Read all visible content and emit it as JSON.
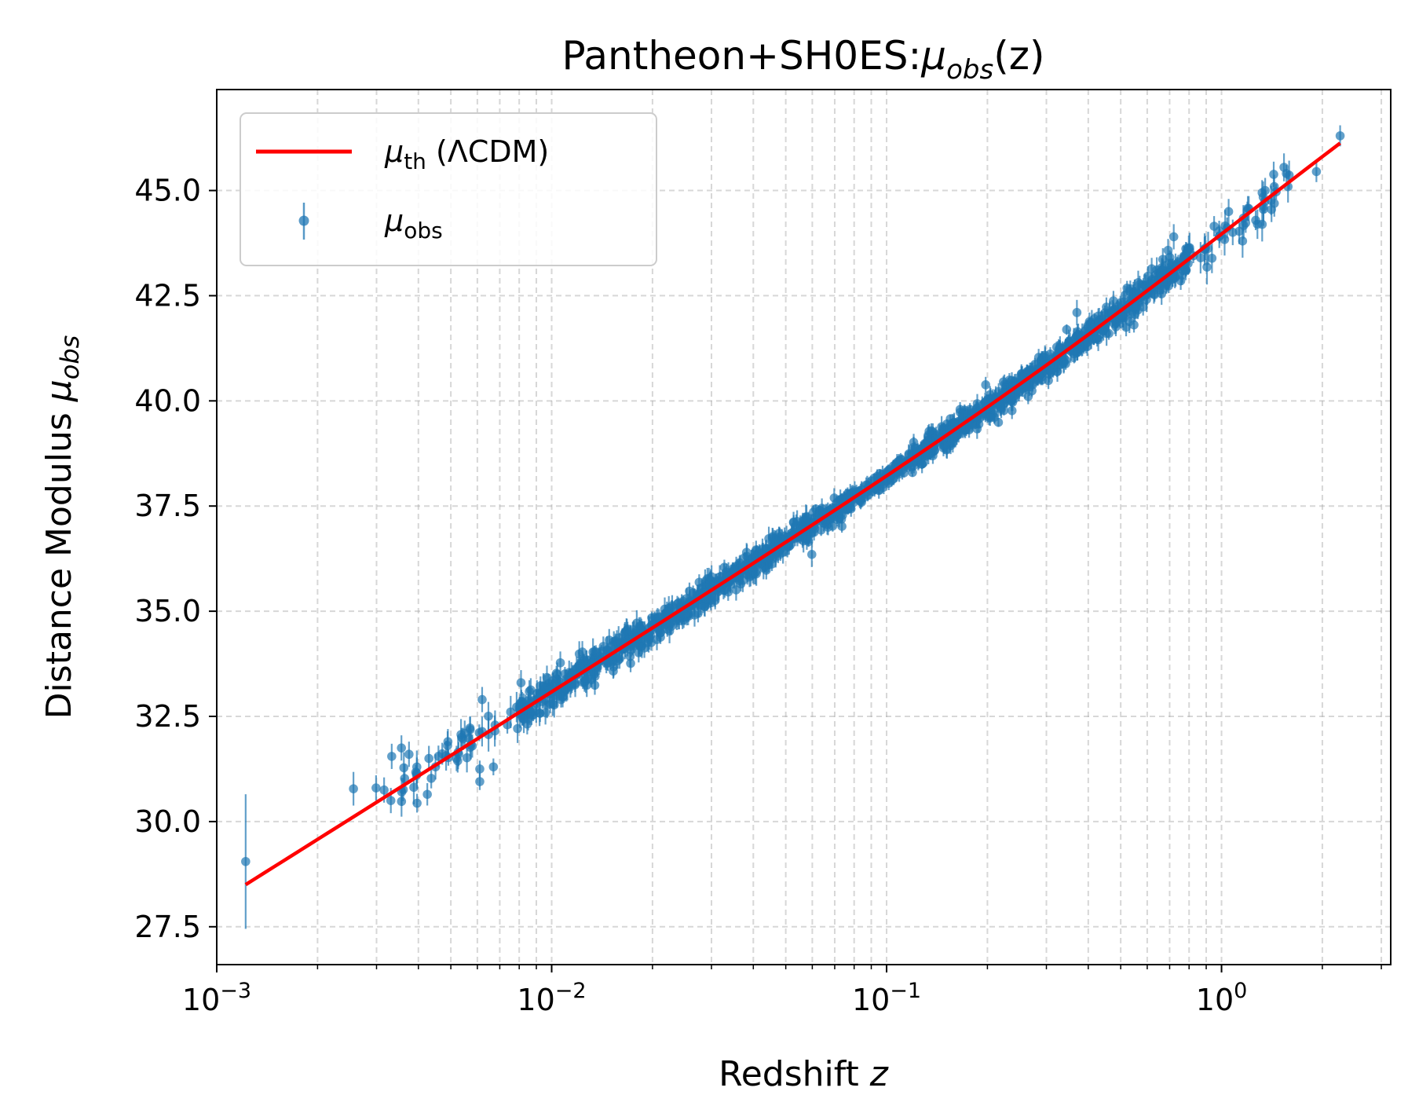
{
  "chart_data": {
    "type": "scatter",
    "title_main": "Pantheon+SH0ES:",
    "title_math": "μ",
    "title_sub": "obs",
    "title_tail": "(z)",
    "xlabel_text": "Redshift ",
    "xlabel_var": "z",
    "ylabel_text": "Distance Modulus ",
    "ylabel_math": "μ",
    "ylabel_sub": "obs",
    "xscale": "log",
    "xlim": [
      0.001,
      3.2
    ],
    "ylim": [
      26.6,
      47.4
    ],
    "xticks": [
      {
        "value": 0.001,
        "base": "10",
        "exp": "−3"
      },
      {
        "value": 0.01,
        "base": "10",
        "exp": "−2"
      },
      {
        "value": 0.1,
        "base": "10",
        "exp": "−1"
      },
      {
        "value": 1,
        "base": "10",
        "exp": "0"
      }
    ],
    "yticks": [
      "27.5",
      "30.0",
      "32.5",
      "35.0",
      "37.5",
      "40.0",
      "42.5",
      "45.0"
    ],
    "ytick_values": [
      27.5,
      30.0,
      32.5,
      35.0,
      37.5,
      40.0,
      42.5,
      45.0
    ],
    "grid": true,
    "legend_position": "upper-left",
    "legend": {
      "theory_math": "μ",
      "theory_sub": "th",
      "theory_tail": " (ΛCDM)",
      "obs_math": "μ",
      "obs_sub": "obs"
    },
    "series": [
      {
        "name": "μ_th (ΛCDM)",
        "kind": "line",
        "color": "#ff0000",
        "model": {
          "H0": 73.0,
          "Om": 0.334,
          "z_min": 0.00122,
          "z_max": 2.26
        }
      },
      {
        "name": "μ_obs",
        "kind": "errorbar",
        "color": "#1f77b4",
        "approx_count": 1700,
        "points": [
          {
            "z": 0.00122,
            "mu": 29.05,
            "err": 1.6
          },
          {
            "z": 0.00256,
            "mu": 30.78,
            "err": 0.4
          },
          {
            "z": 0.00299,
            "mu": 30.8,
            "err": 0.3
          },
          {
            "z": 0.00316,
            "mu": 30.75,
            "err": 0.3
          },
          {
            "z": 0.00331,
            "mu": 30.5,
            "err": 0.3
          },
          {
            "z": 0.00333,
            "mu": 31.55,
            "err": 0.3
          },
          {
            "z": 0.00356,
            "mu": 31.75,
            "err": 0.3
          },
          {
            "z": 0.00375,
            "mu": 31.6,
            "err": 0.3
          },
          {
            "z": 0.00395,
            "mu": 31.1,
            "err": 0.2
          },
          {
            "z": 0.0043,
            "mu": 31.5,
            "err": 0.3
          },
          {
            "z": 0.0045,
            "mu": 31.3,
            "err": 0.3
          },
          {
            "z": 0.0049,
            "mu": 31.9,
            "err": 0.3
          },
          {
            "z": 0.0052,
            "mu": 31.5,
            "err": 0.3
          },
          {
            "z": 0.0055,
            "mu": 32.1,
            "err": 0.3
          },
          {
            "z": 0.0061,
            "mu": 30.95,
            "err": 0.2
          },
          {
            "z": 0.0061,
            "mu": 31.25,
            "err": 0.2
          },
          {
            "z": 0.0062,
            "mu": 32.9,
            "err": 0.3
          },
          {
            "z": 0.0067,
            "mu": 31.3,
            "err": 0.2
          },
          {
            "z": 0.0081,
            "mu": 33.3,
            "err": 0.3
          },
          {
            "z": 0.0598,
            "mu": 36.35,
            "err": 0.3
          },
          {
            "z": 0.37,
            "mu": 42.1,
            "err": 0.3
          },
          {
            "z": 0.72,
            "mu": 43.9,
            "err": 0.3
          },
          {
            "z": 0.89,
            "mu": 43.6,
            "err": 0.3
          },
          {
            "z": 1.05,
            "mu": 44.5,
            "err": 0.3
          },
          {
            "z": 1.28,
            "mu": 44.2,
            "err": 0.35
          },
          {
            "z": 1.35,
            "mu": 45.0,
            "err": 0.3
          },
          {
            "z": 1.41,
            "mu": 44.55,
            "err": 0.3
          },
          {
            "z": 1.92,
            "mu": 45.45,
            "err": 0.25
          },
          {
            "z": 2.26,
            "mu": 46.3,
            "err": 0.25
          }
        ]
      }
    ]
  }
}
